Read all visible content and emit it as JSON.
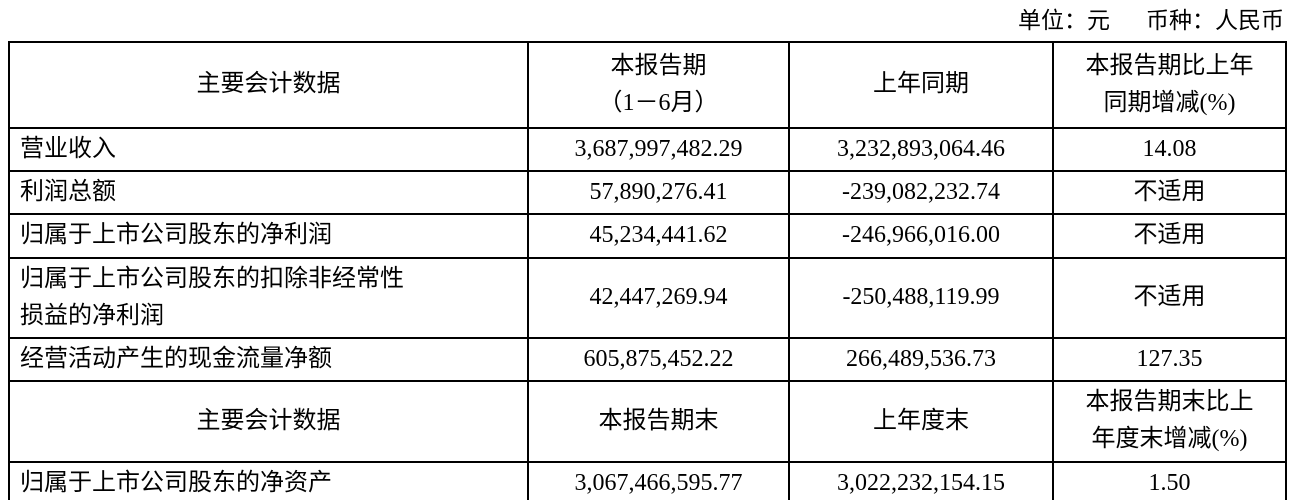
{
  "meta": {
    "unit_label": "单位：元",
    "currency_label": "币种：人民币"
  },
  "table": {
    "header1": {
      "col1": "主要会计数据",
      "col2": "本报告期\n（1－6月）",
      "col3": "上年同期",
      "col4": "本报告期比上年\n同期增减(%)"
    },
    "rows1": [
      {
        "label": "营业收入",
        "current": "3,687,997,482.29",
        "prior": "3,232,893,064.46",
        "change": "14.08"
      },
      {
        "label": "利润总额",
        "current": "57,890,276.41",
        "prior": "-239,082,232.74",
        "change": "不适用"
      },
      {
        "label": "归属于上市公司股东的净利润",
        "current": "45,234,441.62",
        "prior": "-246,966,016.00",
        "change": "不适用"
      },
      {
        "label": "归属于上市公司股东的扣除非经常性\n损益的净利润",
        "current": "42,447,269.94",
        "prior": "-250,488,119.99",
        "change": "不适用"
      },
      {
        "label": "经营活动产生的现金流量净额",
        "current": "605,875,452.22",
        "prior": "266,489,536.73",
        "change": "127.35"
      }
    ],
    "header2": {
      "col1": "主要会计数据",
      "col2": "本报告期末",
      "col3": "上年度末",
      "col4": "本报告期末比上\n年度末增减(%)"
    },
    "rows2": [
      {
        "label": "归属于上市公司股东的净资产",
        "current": "3,067,466,595.77",
        "prior": "3,022,232,154.15",
        "change": "1.50"
      }
    ]
  }
}
